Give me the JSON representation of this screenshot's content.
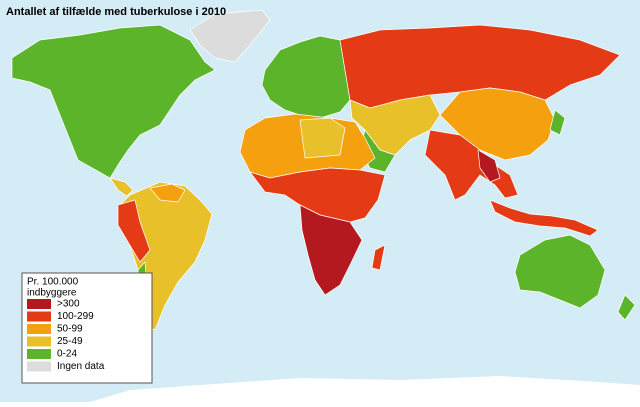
{
  "title": "Antallet af tilfælde med tuberkulose i 2010",
  "legend": {
    "title_lines": [
      "Pr. 100.000",
      "indbyggere"
    ],
    "items": [
      {
        "label": ">300",
        "color": "#b3191f"
      },
      {
        "label": "100-299",
        "color": "#e43b16"
      },
      {
        "label": "50-99",
        "color": "#f4a00f"
      },
      {
        "label": "25-49",
        "color": "#e8c02a"
      },
      {
        "label": "0-24",
        "color": "#5cb42a"
      },
      {
        "label": "Ingen data",
        "color": "#dcdcdc"
      }
    ]
  }
}
